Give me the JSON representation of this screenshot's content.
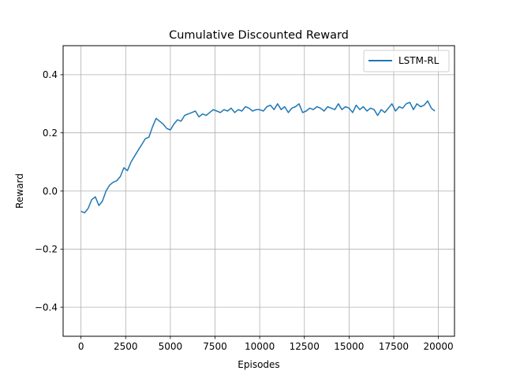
{
  "chart_data": {
    "type": "line",
    "title": "Cumulative Discounted Reward",
    "xlabel": "Episodes",
    "ylabel": "Reward",
    "xlim": [
      -1000,
      20900
    ],
    "ylim": [
      -0.5,
      0.5
    ],
    "xticks": [
      0,
      2500,
      5000,
      7500,
      10000,
      12500,
      15000,
      17500,
      20000
    ],
    "xtick_labels": [
      "0",
      "2500",
      "5000",
      "7500",
      "10000",
      "12500",
      "15000",
      "17500",
      "20000"
    ],
    "yticks": [
      -0.4,
      -0.2,
      0.0,
      0.2,
      0.4
    ],
    "ytick_labels": [
      "−0.4",
      "−0.2",
      "0.0",
      "0.2",
      "0.4"
    ],
    "grid": true,
    "legend_position": "top-right",
    "series": [
      {
        "name": "LSTM-RL",
        "color": "#1f77b4",
        "x": [
          0,
          200,
          400,
          600,
          800,
          1000,
          1200,
          1400,
          1600,
          1800,
          2000,
          2200,
          2400,
          2600,
          2800,
          3000,
          3200,
          3400,
          3600,
          3800,
          4000,
          4200,
          4400,
          4600,
          4800,
          5000,
          5200,
          5400,
          5600,
          5800,
          6000,
          6200,
          6400,
          6600,
          6800,
          7000,
          7200,
          7400,
          7600,
          7800,
          8000,
          8200,
          8400,
          8600,
          8800,
          9000,
          9200,
          9400,
          9600,
          9800,
          10000,
          10200,
          10400,
          10600,
          10800,
          11000,
          11200,
          11400,
          11600,
          11800,
          12000,
          12200,
          12400,
          12600,
          12800,
          13000,
          13200,
          13400,
          13600,
          13800,
          14000,
          14200,
          14400,
          14600,
          14800,
          15000,
          15200,
          15400,
          15600,
          15800,
          16000,
          16200,
          16400,
          16600,
          16800,
          17000,
          17200,
          17400,
          17600,
          17800,
          18000,
          18200,
          18400,
          18600,
          18800,
          19000,
          19200,
          19400,
          19600,
          19800
        ],
        "values": [
          -0.07,
          -0.075,
          -0.06,
          -0.03,
          -0.02,
          -0.05,
          -0.035,
          0.0,
          0.02,
          0.03,
          0.035,
          0.05,
          0.08,
          0.07,
          0.1,
          0.12,
          0.14,
          0.16,
          0.18,
          0.185,
          0.22,
          0.25,
          0.24,
          0.23,
          0.215,
          0.21,
          0.23,
          0.245,
          0.24,
          0.26,
          0.265,
          0.27,
          0.275,
          0.255,
          0.265,
          0.26,
          0.27,
          0.28,
          0.275,
          0.27,
          0.28,
          0.275,
          0.285,
          0.27,
          0.28,
          0.275,
          0.29,
          0.285,
          0.275,
          0.28,
          0.28,
          0.275,
          0.29,
          0.295,
          0.28,
          0.3,
          0.28,
          0.29,
          0.27,
          0.285,
          0.29,
          0.3,
          0.27,
          0.275,
          0.285,
          0.28,
          0.29,
          0.285,
          0.275,
          0.29,
          0.285,
          0.28,
          0.3,
          0.28,
          0.29,
          0.285,
          0.27,
          0.295,
          0.28,
          0.29,
          0.275,
          0.285,
          0.28,
          0.26,
          0.28,
          0.27,
          0.285,
          0.3,
          0.275,
          0.29,
          0.285,
          0.3,
          0.305,
          0.28,
          0.3,
          0.29,
          0.295,
          0.31,
          0.285,
          0.275
        ]
      }
    ]
  }
}
